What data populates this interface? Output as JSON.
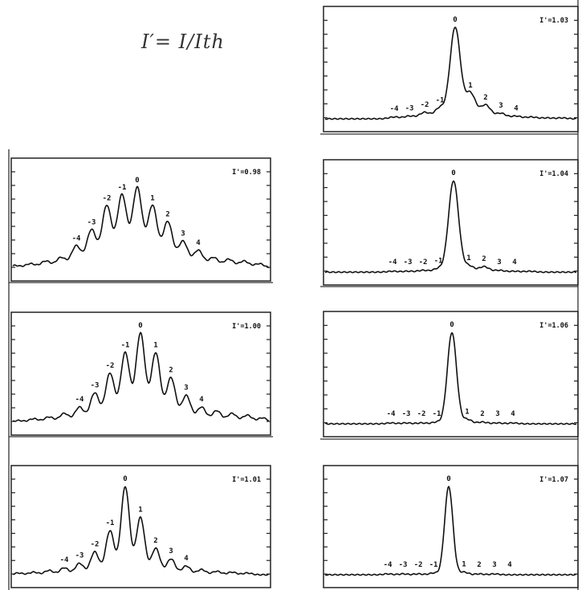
{
  "formula": "I′= I/Ith",
  "chart_data": [
    {
      "type": "line",
      "panel_label": "I'=1.03",
      "x": [
        -8,
        -7,
        -6,
        -5,
        -4,
        -3,
        -2,
        -1,
        0,
        1,
        2,
        3,
        4,
        5,
        6,
        7,
        8
      ],
      "order_labels": [
        "-4",
        "-3",
        "-2",
        "-1",
        "0",
        "1",
        "2",
        "3",
        "4"
      ],
      "labeled_orders": [
        -4,
        -3,
        -2,
        -1,
        0,
        1,
        2,
        3,
        4
      ],
      "values": [
        0,
        0,
        0,
        0,
        0.02,
        0.03,
        0.07,
        0.12,
        1.0,
        0.28,
        0.15,
        0.06,
        0.03,
        0.02,
        0.01,
        0.01,
        0
      ]
    },
    {
      "type": "line",
      "panel_label": "I'=0.98",
      "x": [
        -8,
        -7,
        -6,
        -5,
        -4,
        -3,
        -2,
        -1,
        0,
        1,
        2,
        3,
        4,
        5,
        6,
        7,
        8
      ],
      "order_labels": [
        "-4",
        "-3",
        "-2",
        "-1",
        "0",
        "1",
        "2",
        "3",
        "4"
      ],
      "labeled_orders": [
        -4,
        -3,
        -2,
        -1,
        0,
        1,
        2,
        3,
        4
      ],
      "values": [
        0.03,
        0.05,
        0.08,
        0.12,
        0.25,
        0.43,
        0.7,
        0.82,
        0.9,
        0.7,
        0.52,
        0.3,
        0.2,
        0.12,
        0.1,
        0.08,
        0.05
      ]
    },
    {
      "type": "line",
      "panel_label": "I'=1.04",
      "x": [
        -8,
        -7,
        -6,
        -5,
        -4,
        -3,
        -2,
        -1,
        0,
        1,
        2,
        3,
        4,
        5,
        6,
        7,
        8
      ],
      "order_labels": [
        "-4",
        "-3",
        "-2",
        "-1",
        "0",
        "1",
        "2",
        "3",
        "4"
      ],
      "labeled_orders": [
        -4,
        -3,
        -2,
        -1,
        0,
        1,
        2,
        3,
        4
      ],
      "values": [
        0,
        0,
        0,
        0,
        0.01,
        0.01,
        0.02,
        0.04,
        1.0,
        0.07,
        0.06,
        0.02,
        0.01,
        0.01,
        0,
        0,
        0
      ]
    },
    {
      "type": "line",
      "panel_label": "I'=1.00",
      "x": [
        -8,
        -7,
        -6,
        -5,
        -4,
        -3,
        -2,
        -1,
        0,
        1,
        2,
        3,
        4,
        5,
        6,
        7,
        8
      ],
      "order_labels": [
        "-4",
        "-3",
        "-2",
        "-1",
        "0",
        "1",
        "2",
        "3",
        "4"
      ],
      "labeled_orders": [
        -4,
        -3,
        -2,
        -1,
        0,
        1,
        2,
        3,
        4
      ],
      "values": [
        0.02,
        0.04,
        0.06,
        0.1,
        0.17,
        0.33,
        0.55,
        0.78,
        1.0,
        0.78,
        0.5,
        0.3,
        0.17,
        0.13,
        0.1,
        0.08,
        0.05
      ]
    },
    {
      "type": "line",
      "panel_label": "I'=1.06",
      "x": [
        -8,
        -7,
        -6,
        -5,
        -4,
        -3,
        -2,
        -1,
        0,
        1,
        2,
        3,
        4,
        5,
        6,
        7,
        8
      ],
      "order_labels": [
        "-4",
        "-3",
        "-2",
        "-1",
        "0",
        "1",
        "2",
        "3",
        "4"
      ],
      "labeled_orders": [
        -4,
        -3,
        -2,
        -1,
        0,
        1,
        2,
        3,
        4
      ],
      "values": [
        0,
        0,
        0,
        0,
        0.01,
        0.01,
        0.01,
        0.02,
        1.0,
        0.05,
        0.02,
        0.01,
        0.01,
        0,
        0,
        0,
        0
      ]
    },
    {
      "type": "line",
      "panel_label": "I'=1.01",
      "x": [
        -8,
        -7,
        -6,
        -5,
        -4,
        -3,
        -2,
        -1,
        0,
        1,
        2,
        3,
        4,
        5,
        6,
        7,
        8
      ],
      "order_labels": [
        "-4",
        "-3",
        "-2",
        "-1",
        "0",
        "1",
        "2",
        "3",
        "4"
      ],
      "labeled_orders": [
        -4,
        -3,
        -2,
        -1,
        0,
        1,
        2,
        3,
        4
      ],
      "values": [
        0.01,
        0.02,
        0.03,
        0.05,
        0.08,
        0.13,
        0.26,
        0.5,
        1.0,
        0.65,
        0.3,
        0.18,
        0.1,
        0.06,
        0.04,
        0.03,
        0.02
      ]
    },
    {
      "type": "line",
      "panel_label": "I'=1.07",
      "x": [
        -8,
        -7,
        -6,
        -5,
        -4,
        -3,
        -2,
        -1,
        0,
        1,
        2,
        3,
        4,
        5,
        6,
        7,
        8
      ],
      "order_labels": [
        "-4",
        "-3",
        "-2",
        "-1",
        "0",
        "1",
        "2",
        "3",
        "4"
      ],
      "labeled_orders": [
        -4,
        -3,
        -2,
        -1,
        0,
        1,
        2,
        3,
        4
      ],
      "values": [
        0,
        0,
        0,
        0,
        0.01,
        0.01,
        0.01,
        0.02,
        1.0,
        0.03,
        0.01,
        0.01,
        0,
        0,
        0,
        0,
        0
      ]
    }
  ]
}
